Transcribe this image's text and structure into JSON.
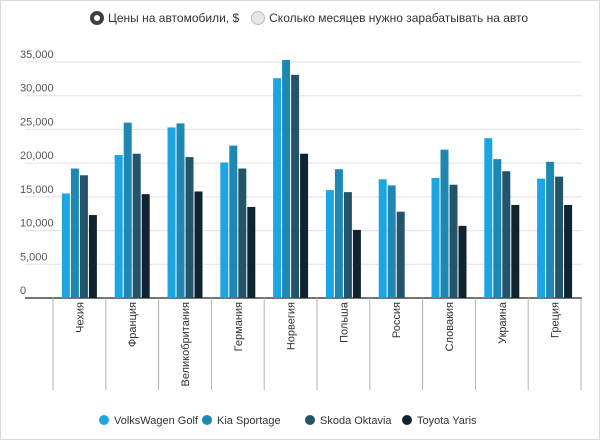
{
  "toggle": {
    "options": [
      {
        "label": "Цены на автомобили, $",
        "selected": true
      },
      {
        "label": "Сколько месяцев нужно зарабатывать на авто",
        "selected": false
      }
    ]
  },
  "colors": {
    "VolksWagen Golf": "#1ba6e3",
    "Kia Sportage": "#1e88b3",
    "Skoda Oktavia": "#24546a",
    "Toyota Yaris": "#10242f"
  },
  "chart_data": {
    "type": "bar",
    "title": "",
    "xlabel": "",
    "ylabel": "",
    "ylim": [
      0,
      35000
    ],
    "yticks": [
      0,
      5000,
      10000,
      15000,
      20000,
      25000,
      30000,
      35000
    ],
    "ytick_labels": [
      "0",
      "5,000",
      "10,000",
      "15,000",
      "20,000",
      "25,000",
      "30,000",
      "35,000"
    ],
    "grid": true,
    "legend_position": "bottom",
    "categories": [
      "Чехия",
      "Франция",
      "Великобритания",
      "Германия",
      "Норвегия",
      "Польша",
      "Россия",
      "Словакия",
      "Украина",
      "Греция"
    ],
    "series": [
      {
        "name": "VolksWagen Golf",
        "values": [
          15500,
          21200,
          25300,
          20100,
          32600,
          16000,
          17600,
          17800,
          23700,
          17700
        ]
      },
      {
        "name": "Kia Sportage",
        "values": [
          19200,
          26000,
          25900,
          22600,
          35300,
          19100,
          16700,
          22000,
          20600,
          20200
        ]
      },
      {
        "name": "Skoda Oktavia",
        "values": [
          18200,
          21400,
          20900,
          19200,
          33100,
          15700,
          12800,
          16800,
          18800,
          18000
        ]
      },
      {
        "name": "Toyota Yaris",
        "values": [
          12300,
          15400,
          15800,
          13500,
          21400,
          10100,
          null,
          10700,
          13800,
          13800
        ]
      }
    ]
  }
}
